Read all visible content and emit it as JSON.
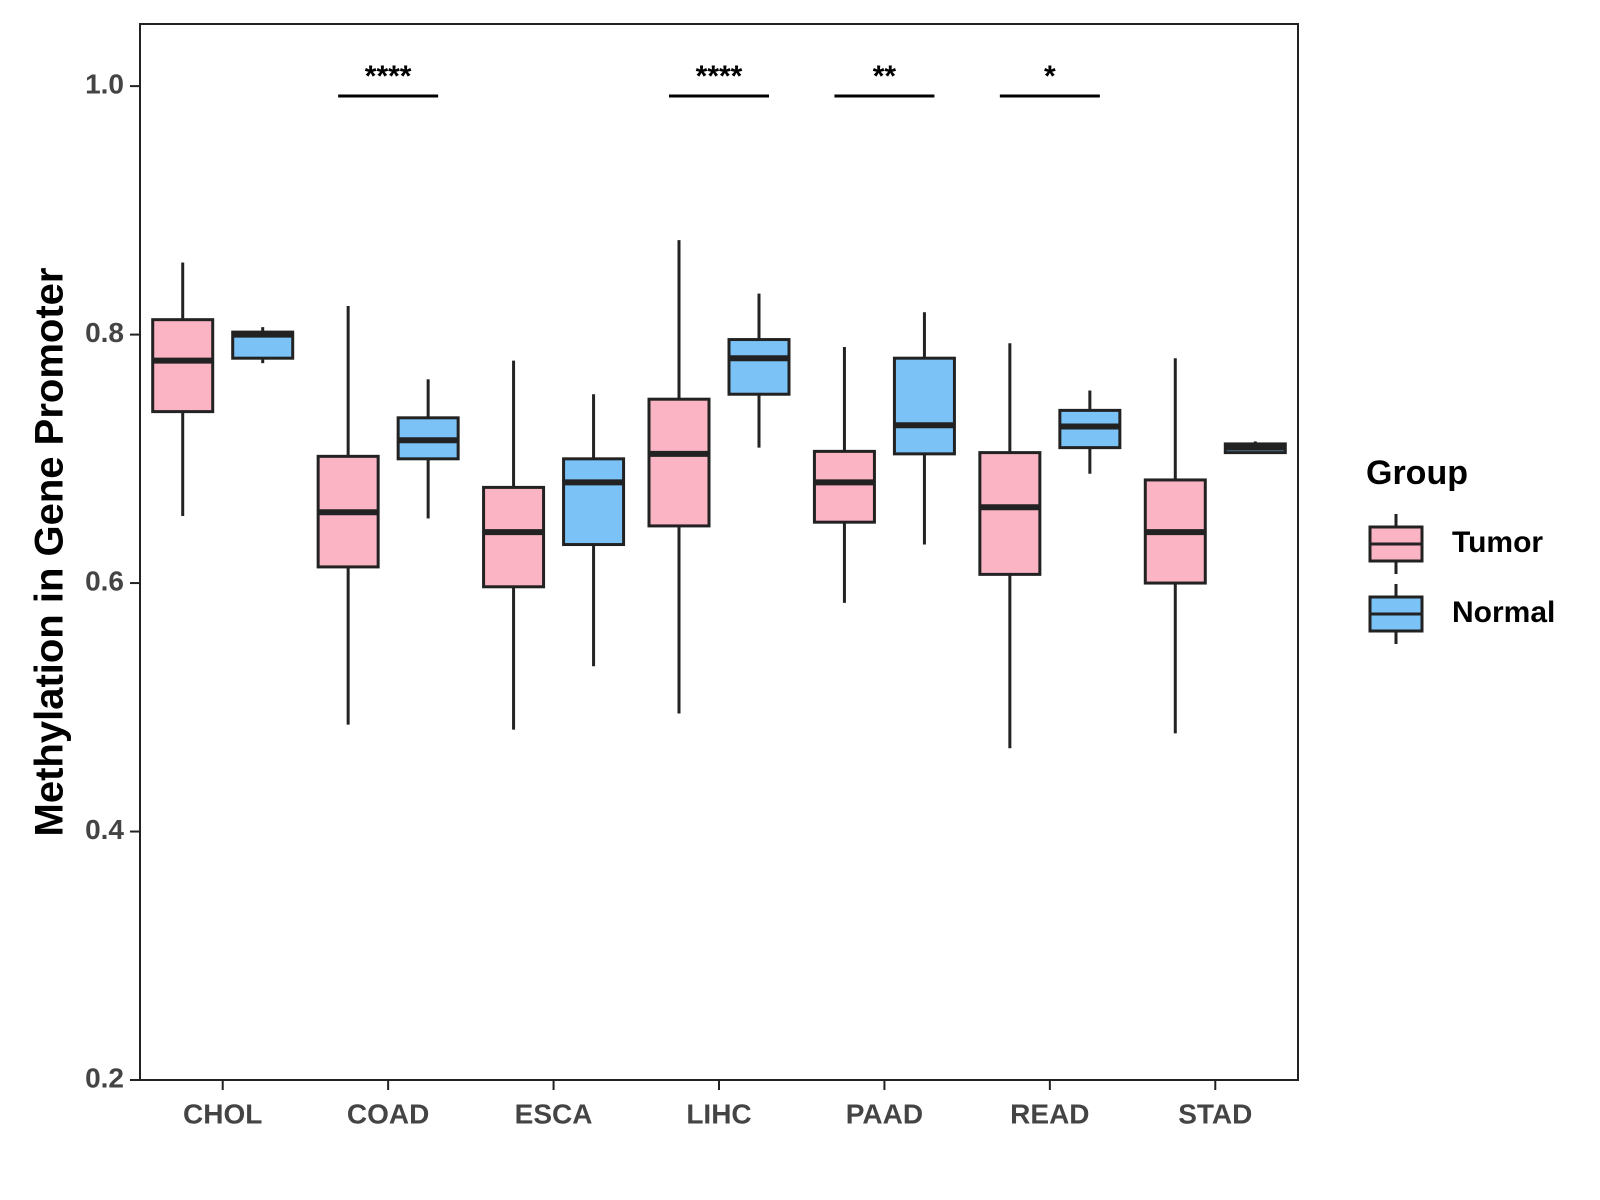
{
  "chart_data": {
    "type": "boxplot",
    "title": "",
    "xlabel": "",
    "ylabel": "Methylation in Gene Promoter",
    "ylim": [
      0.2,
      1.05
    ],
    "yticks": [
      "0.2",
      "0.4",
      "0.6",
      "0.8",
      "1.0"
    ],
    "ytick_values": [
      0.2,
      0.4,
      0.6,
      0.8,
      1.0
    ],
    "categories": [
      "CHOL",
      "COAD",
      "ESCA",
      "LIHC",
      "PAAD",
      "READ",
      "STAD"
    ],
    "legend": {
      "title": "Group",
      "position": "right",
      "entries": [
        {
          "name": "Tumor",
          "color": "#FBB4C4"
        },
        {
          "name": "Normal",
          "color": "#7BC3F7"
        }
      ]
    },
    "series": [
      {
        "name": "Tumor",
        "color": "#FBB4C4",
        "boxes": [
          {
            "category": "CHOL",
            "min": 0.654,
            "q1": 0.738,
            "median": 0.779,
            "q3": 0.812,
            "max": 0.858
          },
          {
            "category": "COAD",
            "min": 0.486,
            "q1": 0.613,
            "median": 0.657,
            "q3": 0.702,
            "max": 0.823
          },
          {
            "category": "ESCA",
            "min": 0.482,
            "q1": 0.597,
            "median": 0.641,
            "q3": 0.677,
            "max": 0.779
          },
          {
            "category": "LIHC",
            "min": 0.495,
            "q1": 0.646,
            "median": 0.704,
            "q3": 0.748,
            "max": 0.876
          },
          {
            "category": "PAAD",
            "min": 0.584,
            "q1": 0.649,
            "median": 0.681,
            "q3": 0.706,
            "max": 0.79
          },
          {
            "category": "READ",
            "min": 0.467,
            "q1": 0.607,
            "median": 0.661,
            "q3": 0.705,
            "max": 0.793
          },
          {
            "category": "STAD",
            "min": 0.479,
            "q1": 0.6,
            "median": 0.641,
            "q3": 0.683,
            "max": 0.781
          }
        ]
      },
      {
        "name": "Normal",
        "color": "#7BC3F7",
        "boxes": [
          {
            "category": "CHOL",
            "min": 0.777,
            "q1": 0.781,
            "median": 0.8,
            "q3": 0.802,
            "max": 0.806
          },
          {
            "category": "COAD",
            "min": 0.652,
            "q1": 0.7,
            "median": 0.715,
            "q3": 0.733,
            "max": 0.764
          },
          {
            "category": "ESCA",
            "min": 0.533,
            "q1": 0.631,
            "median": 0.681,
            "q3": 0.7,
            "max": 0.752
          },
          {
            "category": "LIHC",
            "min": 0.709,
            "q1": 0.752,
            "median": 0.781,
            "q3": 0.796,
            "max": 0.833
          },
          {
            "category": "PAAD",
            "min": 0.631,
            "q1": 0.704,
            "median": 0.727,
            "q3": 0.781,
            "max": 0.818
          },
          {
            "category": "READ",
            "min": 0.688,
            "q1": 0.709,
            "median": 0.726,
            "q3": 0.739,
            "max": 0.755
          },
          {
            "category": "STAD",
            "min": 0.704,
            "q1": 0.705,
            "median": 0.709,
            "q3": 0.712,
            "max": 0.714
          }
        ]
      }
    ],
    "significance": [
      {
        "category": "COAD",
        "label": "****",
        "y": 0.992
      },
      {
        "category": "LIHC",
        "label": "****",
        "y": 0.992
      },
      {
        "category": "PAAD",
        "label": "**",
        "y": 0.992
      },
      {
        "category": "READ",
        "label": "*",
        "y": 0.992
      }
    ]
  }
}
